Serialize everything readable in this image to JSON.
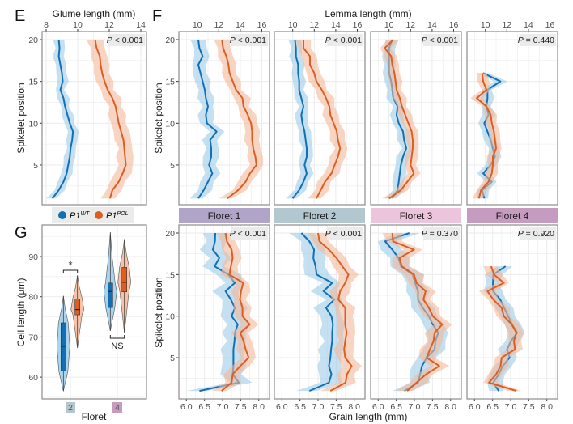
{
  "colors": {
    "wt": "#1170b5",
    "pol": "#db5f22",
    "wt_ribbon": "#9ccbe8",
    "pol_ribbon": "#f4b79a",
    "grid": "#ebebeb",
    "border": "#8c8c8c",
    "pbox": "#ebebeb"
  },
  "panel_letters": {
    "e": "E",
    "f": "F",
    "g": "G"
  },
  "legend": {
    "items": [
      {
        "base": "P1",
        "sup": "WT",
        "color": "#1170b5"
      },
      {
        "base": "P1",
        "sup": "POL",
        "color": "#db5f22"
      }
    ],
    "icon": "filled-circle"
  },
  "chart_data": [
    {
      "id": "E",
      "type": "line",
      "xlabel": "Glume length (mm)",
      "ylabel": "Spikelet position",
      "xlim": [
        7.8,
        14.2
      ],
      "ylim": [
        0.5,
        21
      ],
      "xticks": [
        8,
        10,
        12,
        14
      ],
      "yticks": [
        5,
        10,
        15,
        20
      ],
      "x_axis_position": "top",
      "grid": true,
      "p_label": {
        "italic": "P",
        "rest": " < 0.001"
      },
      "series": [
        {
          "group": "WT",
          "sd": 0.3,
          "y": [
            1,
            2,
            3,
            4,
            5,
            6,
            7,
            8,
            9,
            10,
            11,
            12,
            13,
            14,
            15,
            16,
            17,
            18,
            19,
            20
          ],
          "x": [
            8.4,
            8.8,
            9.1,
            9.3,
            9.4,
            9.5,
            9.55,
            9.65,
            9.7,
            9.5,
            9.35,
            9.2,
            9.1,
            8.9,
            9.05,
            9.0,
            8.9,
            8.8,
            8.85,
            8.8
          ]
        },
        {
          "group": "POL",
          "sd": 0.45,
          "y": [
            1,
            2,
            3,
            4,
            5,
            6,
            7,
            8,
            9,
            10,
            11,
            12,
            13,
            14,
            15,
            16,
            17,
            18,
            19,
            20
          ],
          "x": [
            12.05,
            12.2,
            12.6,
            12.85,
            13.05,
            13.0,
            12.95,
            12.9,
            12.75,
            12.6,
            12.5,
            12.4,
            12.2,
            11.9,
            11.7,
            11.55,
            11.45,
            11.4,
            11.2,
            11.1
          ]
        }
      ]
    },
    {
      "id": "F",
      "type": "line",
      "xlabel_top": "Lemma length (mm)",
      "xlabel_bottom": "Grain length (mm)",
      "ylabel": "Spikelet position",
      "top_xticks": [
        10,
        12,
        14,
        16
      ],
      "top_xlim": [
        8.3,
        16.8
      ],
      "bottom_xticks": [
        "6.0",
        "6.5",
        "7.0",
        "7.5",
        "8.0"
      ],
      "bottom_xlim": [
        5.8,
        8.3
      ],
      "ylim": [
        0.5,
        21
      ],
      "yticks": [
        5,
        10,
        15,
        20
      ],
      "grid": true,
      "florets": [
        {
          "label": "Floret 1",
          "strip_color": "#b1a4c9",
          "lemma": {
            "p_label": {
              "italic": "P",
              "rest": " < 0.001"
            },
            "wt": {
              "sd": 0.6,
              "x": [
                10.1,
                10.6,
                11.0,
                11.4,
                11.1,
                11.3,
                11.3,
                11.2,
                11.8,
                10.9,
                10.8,
                11.0,
                10.8,
                10.7,
                10.5,
                10.3,
                10.1,
                10.5,
                10.2,
                10.1
              ]
            },
            "pol": {
              "sd": 0.6,
              "x": [
                12.8,
                13.8,
                14.5,
                14.9,
                15.5,
                15.4,
                15.2,
                15.1,
                15.1,
                15.0,
                14.7,
                14.3,
                14.2,
                13.6,
                13.3,
                13.0,
                12.9,
                12.7,
                12.4,
                12.3
              ]
            }
          },
          "grain": {
            "p_label": {
              "italic": "P",
              "rest": " < 0.001"
            },
            "wt": {
              "sd": 0.28,
              "x": [
                6.36,
                7.45,
                7.28,
                7.3,
                7.3,
                7.3,
                7.33,
                7.34,
                7.42,
                7.25,
                7.34,
                7.23,
                7.08,
                7.34,
                7.16,
                6.78,
                6.91,
                6.73,
                6.79,
                6.8
              ]
            },
            "pol": {
              "sd": 0.2,
              "x": [
                6.97,
                7.25,
                7.28,
                7.49,
                7.72,
                7.64,
                7.58,
                7.49,
                7.75,
                7.55,
                7.55,
                7.48,
                7.51,
                7.57,
                7.19,
                7.23,
                7.28,
                7.25,
                7.12,
                7.08
              ]
            }
          }
        },
        {
          "label": "Floret 2",
          "strip_color": "#b3c7d0",
          "lemma": {
            "p_label": {
              "italic": "P",
              "rest": " < 0.001"
            },
            "wt": {
              "sd": 0.5,
              "x": [
                10.0,
                10.6,
                11.0,
                11.3,
                11.1,
                11.3,
                11.3,
                11.2,
                11.1,
                10.9,
                10.8,
                11.0,
                10.8,
                10.6,
                10.6,
                10.5,
                10.5,
                10.3,
                10.3,
                10.2
              ]
            },
            "pol": {
              "sd": 0.6,
              "x": [
                12.2,
                12.6,
                13.0,
                13.6,
                13.9,
                14.2,
                14.4,
                14.2,
                14.1,
                13.8,
                13.5,
                13.4,
                13.1,
                12.7,
                12.2,
                12.0,
                11.6,
                11.6,
                11.0,
                11.0
              ]
            }
          },
          "grain": {
            "p_label": {
              "italic": "P",
              "rest": " < 0.001"
            },
            "wt": {
              "sd": 0.28,
              "x": [
                6.76,
                7.3,
                7.37,
                7.3,
                7.34,
                7.36,
                7.39,
                7.39,
                7.41,
                7.37,
                7.22,
                7.45,
                7.15,
                7.39,
                6.96,
                6.93,
                6.87,
                6.89,
                6.76,
                6.54
              ]
            },
            "pol": {
              "sd": 0.22,
              "x": [
                7.34,
                7.76,
                7.8,
                7.93,
                7.75,
                7.72,
                7.75,
                7.79,
                7.75,
                7.75,
                7.75,
                7.56,
                7.61,
                7.75,
                7.84,
                7.67,
                7.51,
                7.3,
                7.04,
                7.0
              ]
            }
          }
        },
        {
          "label": "Floret 3",
          "strip_color": "#ecc4dc",
          "lemma": {
            "p_label": {
              "italic": "P",
              "rest": " < 0.001"
            },
            "wt": {
              "sd": 0.5,
              "x": [
                10.3,
                10.8,
                10.9,
                11.0,
                11.1,
                11.3,
                11.6,
                11.4,
                11.3,
                10.9,
                10.7,
                10.8,
                10.4,
                10.3,
                10.2,
                10.0,
                10.0,
                10.0,
                10.0,
                10.3
              ]
            },
            "pol": {
              "sd": 0.5,
              "x": [
                10.0,
                11.1,
                11.7,
                12.3,
                12.0,
                12.1,
                12.2,
                12.2,
                12.1,
                11.8,
                11.5,
                11.2,
                11.0,
                10.7,
                10.6,
                10.5,
                10.3,
                10.2,
                9.6,
                10.4
              ]
            }
          },
          "grain": {
            "p_label": {
              "italic": "P",
              "rest": " = 0.370"
            },
            "wt": {
              "sd": 0.25,
              "x": [
                6.72,
                7.1,
                7.16,
                7.21,
                7.34,
                7.56,
                7.58,
                7.66,
                7.51,
                7.4,
                7.23,
                7.1,
                7.1,
                7.02,
                6.95,
                6.63,
                6.56,
                6.39,
                6.19,
                6.86
              ]
            },
            "pol": {
              "sd": 0.22,
              "x": [
                6.8,
                7.06,
                7.32,
                7.69,
                7.34,
                7.43,
                7.53,
                7.56,
                7.77,
                7.51,
                7.4,
                7.25,
                7.31,
                7.06,
                6.99,
                6.65,
                6.59,
                6.99,
                6.41,
                6.39
              ]
            }
          }
        },
        {
          "label": "Floret 4",
          "strip_color": "#c69bc0",
          "lemma": {
            "p_label": {
              "italic": "P",
              "rest": " = 0.440"
            },
            "wt": {
              "sd": 0.5,
              "x": [
                9.9,
                9.7,
                10.6,
                9.8,
                10.5,
                10.9,
                10.7,
                10.5,
                10.2,
                9.9,
                10.3,
                10.1,
                10.2,
                10.2,
                11.4,
                9.8
              ]
            },
            "pol": {
              "sd": 0.45,
              "x": [
                9.4,
                9.6,
                10.3,
                10.6,
                10.7,
                10.7,
                11.0,
                10.9,
                10.8,
                10.6,
                10.5,
                10.1,
                9.2,
                10.1,
                9.8,
                9.7
              ]
            }
          },
          "grain": {
            "p_label": {
              "italic": "P",
              "rest": " = 0.920"
            },
            "wt": {
              "sd": 0.2,
              "x": [
                6.67,
                6.52,
                6.67,
                6.78,
                6.97,
                6.9,
                7.01,
                7.18,
                7.04,
                6.93,
                6.82,
                6.71,
                6.51,
                6.51,
                6.52,
                6.86
              ]
            },
            "pol": {
              "sd": 0.18,
              "x": [
                7.16,
                6.4,
                6.6,
                6.72,
                6.75,
                7.12,
                7.09,
                7.16,
                7.03,
                6.81,
                6.75,
                6.52,
                6.36,
                6.81,
                6.54,
                6.46
              ]
            }
          }
        }
      ]
    },
    {
      "id": "G",
      "type": "violin",
      "xlabel": "Floret",
      "ylabel": "Cell length (µm)",
      "ylim": [
        55,
        97.5
      ],
      "yticks": [
        60,
        70,
        80,
        90
      ],
      "categories": [
        "2",
        "4"
      ],
      "category_colors": [
        "#b3c7d0",
        "#c69bc0"
      ],
      "grid": true,
      "groups": [
        {
          "category": "2",
          "series": "WT",
          "min": 56.5,
          "q1": 61.5,
          "median": 67.7,
          "q3": 73.5,
          "max": 80.2
        },
        {
          "category": "2",
          "series": "POL",
          "min": 67.3,
          "q1": 75.5,
          "median": 76.8,
          "q3": 79.4,
          "max": 85.3
        },
        {
          "category": "4",
          "series": "WT",
          "min": 71.5,
          "q1": 77.3,
          "median": 81.3,
          "q3": 83.4,
          "max": 96.0
        },
        {
          "category": "4",
          "series": "POL",
          "min": 71.0,
          "q1": 81.2,
          "median": 83.6,
          "q3": 87.3,
          "max": 94.3
        }
      ],
      "annotations": [
        {
          "category": "2",
          "text": "*",
          "position": "above"
        },
        {
          "category": "4",
          "text": "NS",
          "position": "below"
        }
      ]
    }
  ]
}
